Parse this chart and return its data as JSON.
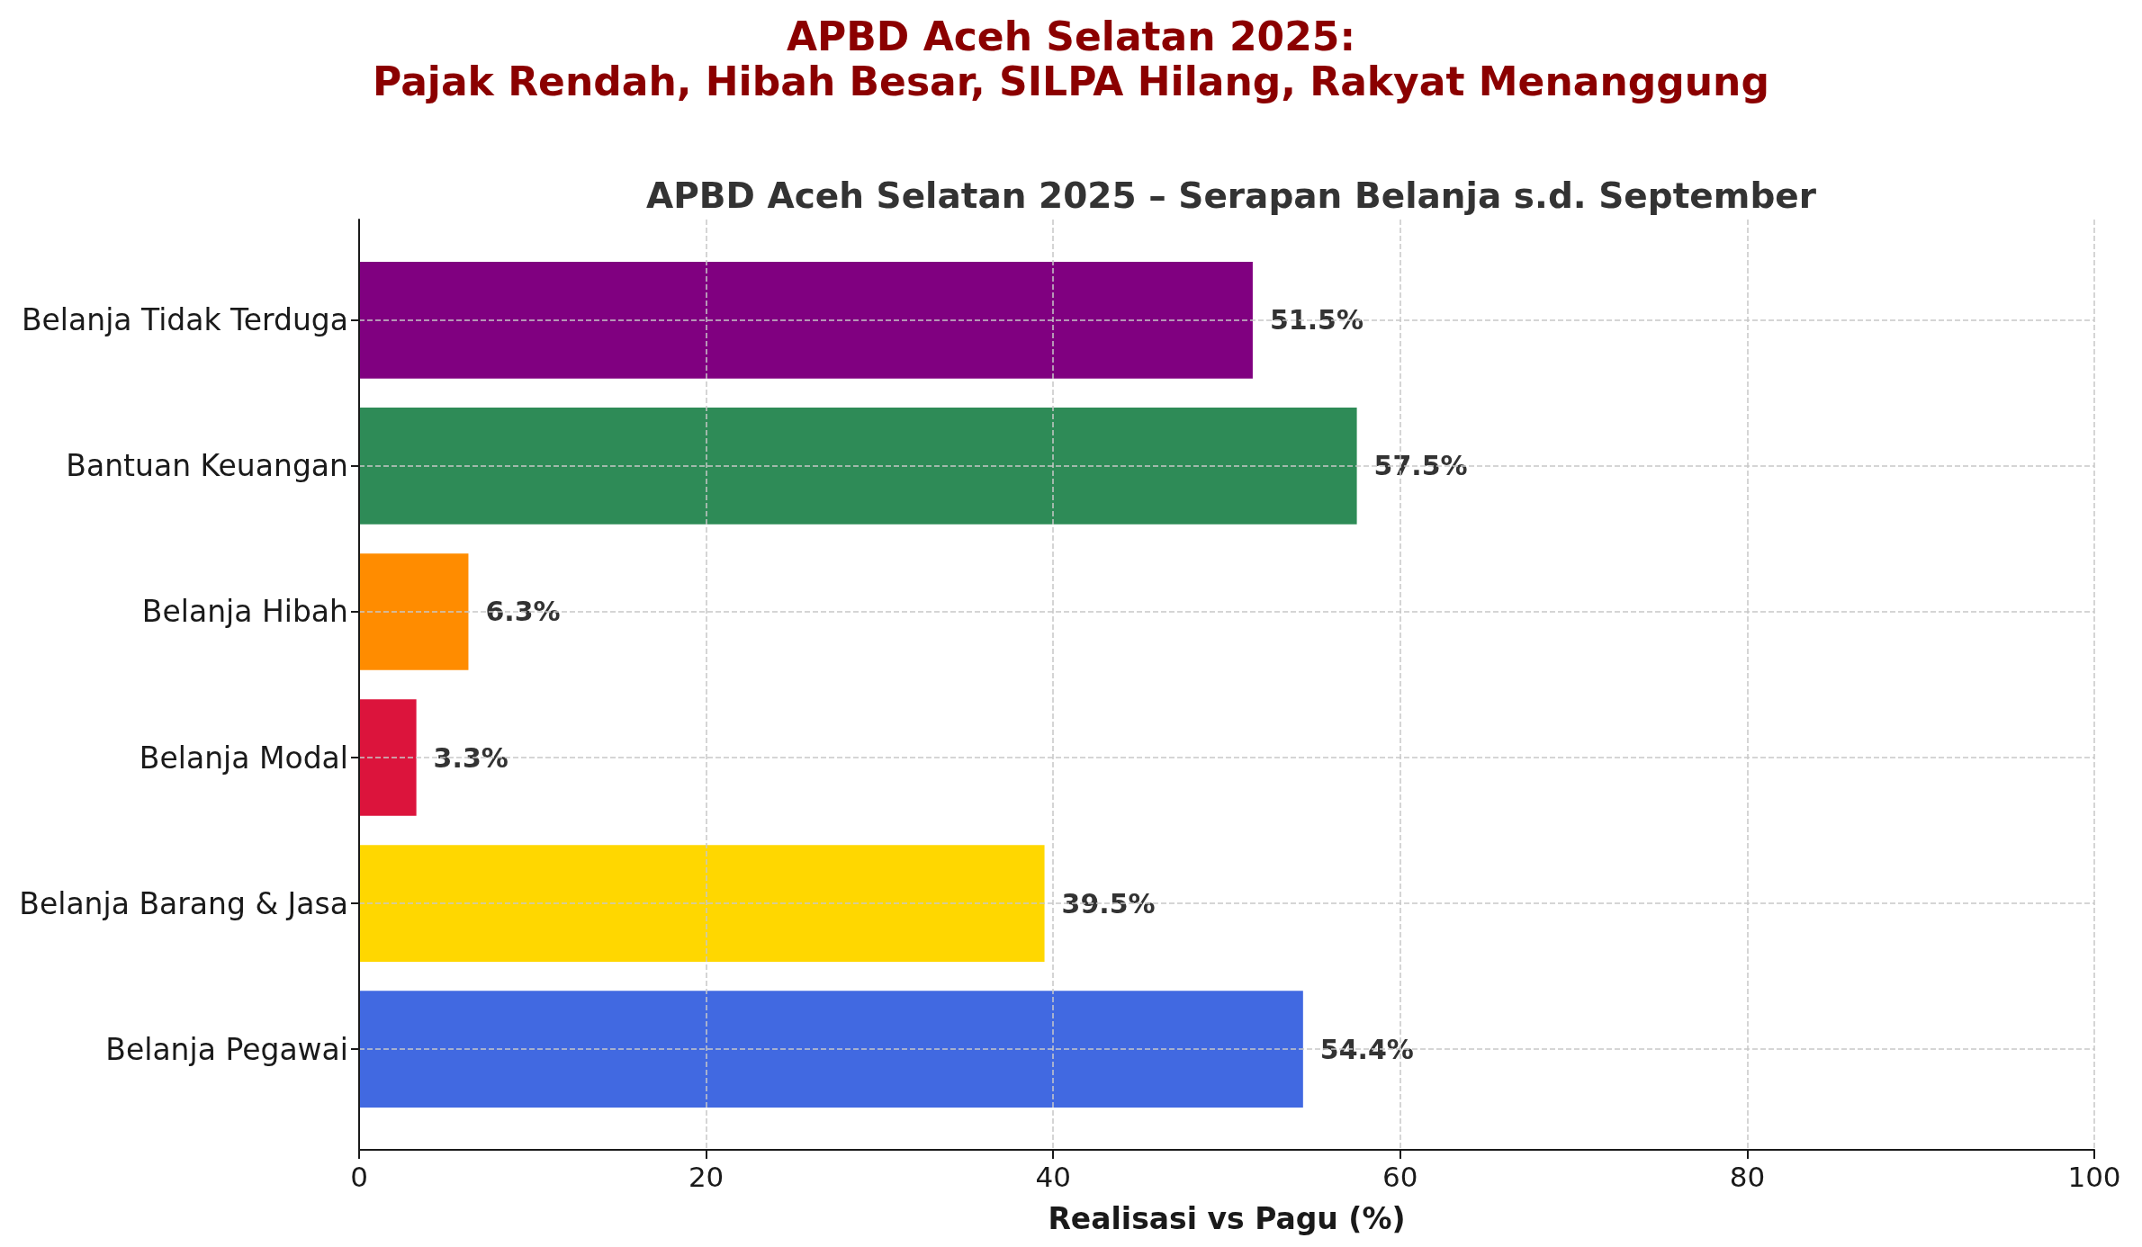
{
  "chart_data": {
    "type": "bar",
    "orientation": "horizontal",
    "title": "APBD Aceh Selatan 2025:\nPajak Rendah, Hibah Besar, SILPA Hilang, Rakyat Menanggung",
    "subtitle": "APBD Aceh Selatan 2025 – Serapan Belanja s.d. September",
    "xlabel": "Realisasi vs Pagu (%)",
    "categories": [
      "Belanja Tidak Terduga",
      "Bantuan Keuangan",
      "Belanja Hibah",
      "Belanja Modal",
      "Belanja Barang & Jasa",
      "Belanja Pegawai"
    ],
    "values": [
      51.5,
      57.5,
      6.3,
      3.3,
      39.5,
      54.4
    ],
    "colors": [
      "#800080",
      "#2e8b57",
      "#ff8c00",
      "#dc143c",
      "#ffd700",
      "#4169e1"
    ],
    "value_labels": [
      "51.5%",
      "57.5%",
      "6.3%",
      "3.3%",
      "39.5%",
      "54.4%"
    ],
    "xlim": [
      0,
      100
    ],
    "xticks": [
      0,
      20,
      40,
      60,
      80,
      100
    ],
    "grid": true
  }
}
